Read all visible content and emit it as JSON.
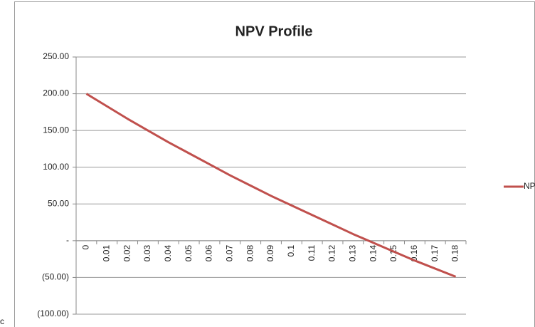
{
  "chart_data": {
    "type": "line",
    "title": "NPV Profile",
    "categories": [
      "0",
      "0.01",
      "0.02",
      "0.03",
      "0.04",
      "0.05",
      "0.06",
      "0.07",
      "0.08",
      "0.09",
      "0.1",
      "0.11",
      "0.12",
      "0.13",
      "0.14",
      "0.15",
      "0.16",
      "0.17",
      "0.18"
    ],
    "series": [
      {
        "name": "NPV",
        "color": "#c0504d",
        "values": [
          200,
          183,
          166,
          150,
          134,
          119,
          104,
          89,
          75,
          61,
          48,
          35,
          22,
          9,
          -3,
          -15,
          -27,
          -38,
          -49
        ]
      }
    ],
    "ylim": [
      -100,
      250
    ],
    "yticks": [
      {
        "value": -100,
        "label": "(100.00)"
      },
      {
        "value": -50,
        "label": "(50.00)"
      },
      {
        "value": 0,
        "label": "-"
      },
      {
        "value": 50,
        "label": "50.00"
      },
      {
        "value": 100,
        "label": "100.00"
      },
      {
        "value": 150,
        "label": "150.00"
      },
      {
        "value": 200,
        "label": "200.00"
      },
      {
        "value": 250,
        "label": "250.00"
      }
    ],
    "grid": true,
    "legend": "right"
  },
  "stray_text": "c"
}
